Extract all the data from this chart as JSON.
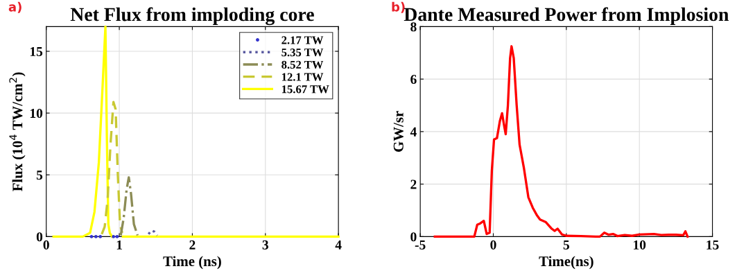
{
  "chart_data": [
    {
      "type": "line",
      "title": "Net Flux from imploding core",
      "xlabel": "Time (ns)",
      "ylabel": "Flux (10$^{4}$ TW/cm$^{2}$)",
      "annotations": [
        "a)"
      ],
      "xlim": [
        0,
        4
      ],
      "xticks": [
        0,
        1,
        2,
        3,
        4
      ],
      "ylim": [
        0,
        17
      ],
      "yticks": [
        0,
        5,
        10,
        15
      ],
      "grid": true,
      "legend": "top right",
      "series": [
        {
          "name": "2.17 TW",
          "type": "scatter",
          "color": "#3333cc",
          "marker": "circle",
          "x": [
            0.62,
            0.68,
            0.74,
            0.92,
            0.97
          ],
          "values": [
            0,
            0,
            0,
            0,
            0
          ]
        },
        {
          "name": "5.35 TW",
          "color": "#5a5aa0",
          "line_style": "dotted",
          "marker": "none",
          "x": [
            1.4,
            1.44,
            1.48,
            1.52
          ],
          "values": [
            0.2,
            0.5,
            0.4,
            0.1
          ]
        },
        {
          "name": "8.52 TW",
          "color": "#8c8c55",
          "line_style": "dashdot",
          "marker": "none",
          "x": [
            1.02,
            1.06,
            1.1,
            1.13,
            1.16,
            1.2,
            1.25
          ],
          "values": [
            0.1,
            1.5,
            3.8,
            4.8,
            3.5,
            1.0,
            0.1
          ]
        },
        {
          "name": "12.1 TW",
          "color": "#c8c832",
          "line_style": "dashed",
          "marker": "none",
          "x": [
            0.76,
            0.8,
            0.84,
            0.88,
            0.92,
            0.95,
            0.98,
            1.01,
            1.04
          ],
          "values": [
            0.2,
            0.8,
            3,
            7.5,
            10.9,
            10.3,
            5,
            1,
            0.3
          ]
        },
        {
          "name": "15.67 TW",
          "color": "#ffff00",
          "line_style": "solid",
          "marker": "none",
          "x": [
            0.1,
            0.5,
            0.6,
            0.66,
            0.72,
            0.77,
            0.81,
            0.83,
            0.85,
            0.87,
            0.9,
            0.95,
            1.05,
            1.5,
            2,
            2.5,
            3,
            3.5,
            4
          ],
          "values": [
            0,
            0,
            0.3,
            2,
            6,
            12,
            17,
            8,
            1,
            0.3,
            0,
            null,
            0,
            0,
            0,
            0,
            0,
            0,
            0
          ]
        }
      ]
    },
    {
      "type": "line",
      "title": "Dante Measured Power from Implosion",
      "xlabel": "Time(ns)",
      "ylabel": "GW/sr",
      "annotations": [
        "b)"
      ],
      "xlim": [
        -5,
        15
      ],
      "xticks": [
        {
          "value": -5,
          "label": "-5"
        },
        0,
        5,
        10,
        15
      ],
      "ylim": [
        0,
        8
      ],
      "yticks": [
        0,
        2,
        4,
        6,
        8
      ],
      "grid": true,
      "series": [
        {
          "color": "#ff0000",
          "line_style": "solid",
          "marker": "none",
          "x": [
            -4,
            -1.3,
            -1.1,
            -0.9,
            -0.65,
            -0.45,
            -0.25,
            -0.1,
            0.05,
            0.25,
            0.45,
            0.6,
            0.75,
            0.85,
            1.0,
            1.15,
            1.25,
            1.4,
            1.6,
            1.8,
            2.1,
            2.4,
            2.7,
            3.0,
            3.2,
            3.6,
            4.0,
            4.2,
            4.4,
            4.7,
            5.0,
            6,
            7,
            7.3,
            7.6,
            7.9,
            8.2,
            8.5,
            9,
            9.5,
            10,
            11,
            11.5,
            12,
            12.5,
            13.0,
            13.15,
            13.3
          ],
          "values": [
            0,
            0,
            0.45,
            0.5,
            0.6,
            0.1,
            0.15,
            2.5,
            3.7,
            3.75,
            4.4,
            4.7,
            4.2,
            3.9,
            5.0,
            6.8,
            7.25,
            6.8,
            5.0,
            3.5,
            2.6,
            1.5,
            1.1,
            0.8,
            0.65,
            0.55,
            0.3,
            0.22,
            0.3,
            0.08,
            0.03,
            0.02,
            0,
            0,
            0.15,
            0.07,
            0.1,
            0.02,
            0.06,
            0.03,
            0.08,
            0.1,
            0.06,
            0.07,
            0.07,
            0.05,
            0.2,
            0
          ]
        }
      ]
    }
  ]
}
